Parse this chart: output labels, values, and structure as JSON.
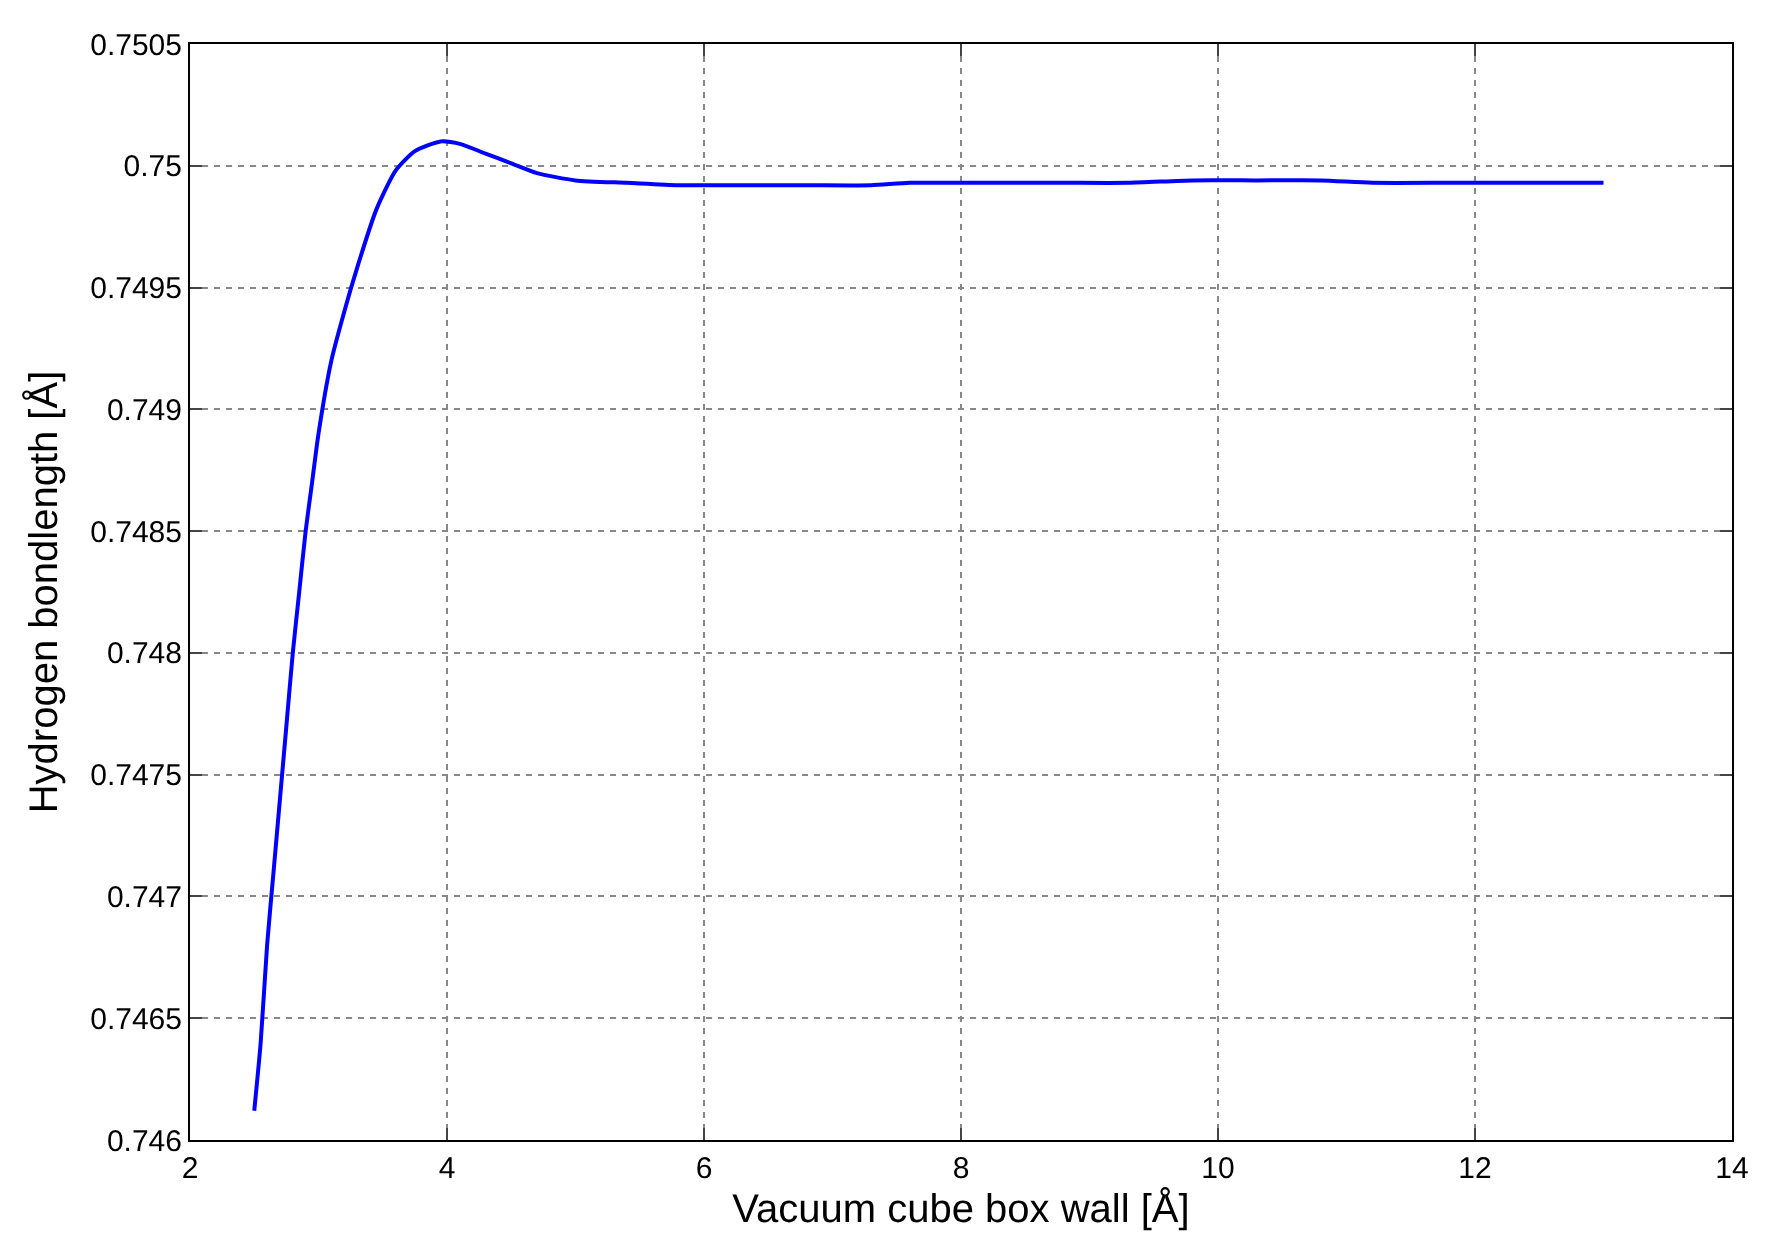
{
  "chart_data": {
    "type": "line",
    "xlabel": "Vacuum cube box wall [Å]",
    "ylabel": "Hydrogen bondlength [Å]",
    "series": [
      {
        "color": "#0000ff",
        "x": [
          2.5,
          2.55,
          2.6,
          2.65,
          2.7,
          2.75,
          2.8,
          2.85,
          2.9,
          2.95,
          3.0,
          3.1,
          3.2,
          3.3,
          3.45,
          3.6,
          3.75,
          3.95,
          4.1,
          4.3,
          4.5,
          4.7,
          5.0,
          5.4,
          5.8,
          6.3,
          6.8,
          7.3,
          7.6,
          8.2,
          8.8,
          9.3,
          9.8,
          10.3,
          10.8,
          11.2,
          11.8,
          12.4,
          13.0
        ],
        "values": [
          0.74612,
          0.7464,
          0.7468,
          0.7471,
          0.7474,
          0.7477,
          0.748,
          0.74825,
          0.7485,
          0.7487,
          0.7489,
          0.7492,
          0.7494,
          0.74958,
          0.74982,
          0.74998,
          0.75006,
          0.7501,
          0.75009,
          0.75005,
          0.75001,
          0.74997,
          0.74994,
          0.74993,
          0.74992,
          0.74992,
          0.74992,
          0.74992,
          0.74993,
          0.74993,
          0.74993,
          0.74993,
          0.74994,
          0.74994,
          0.74994,
          0.74993,
          0.74993,
          0.74993,
          0.74993
        ]
      }
    ],
    "xlim": [
      2,
      14
    ],
    "xticks": [
      2,
      4,
      6,
      8,
      10,
      12,
      14
    ],
    "ylim": [
      0.746,
      0.7505
    ],
    "yticks": [
      0.746,
      0.7465,
      0.747,
      0.7475,
      0.748,
      0.7485,
      0.749,
      0.7495,
      0.75,
      0.7505
    ],
    "grid": true,
    "marker": "none",
    "line_style": "solid"
  }
}
